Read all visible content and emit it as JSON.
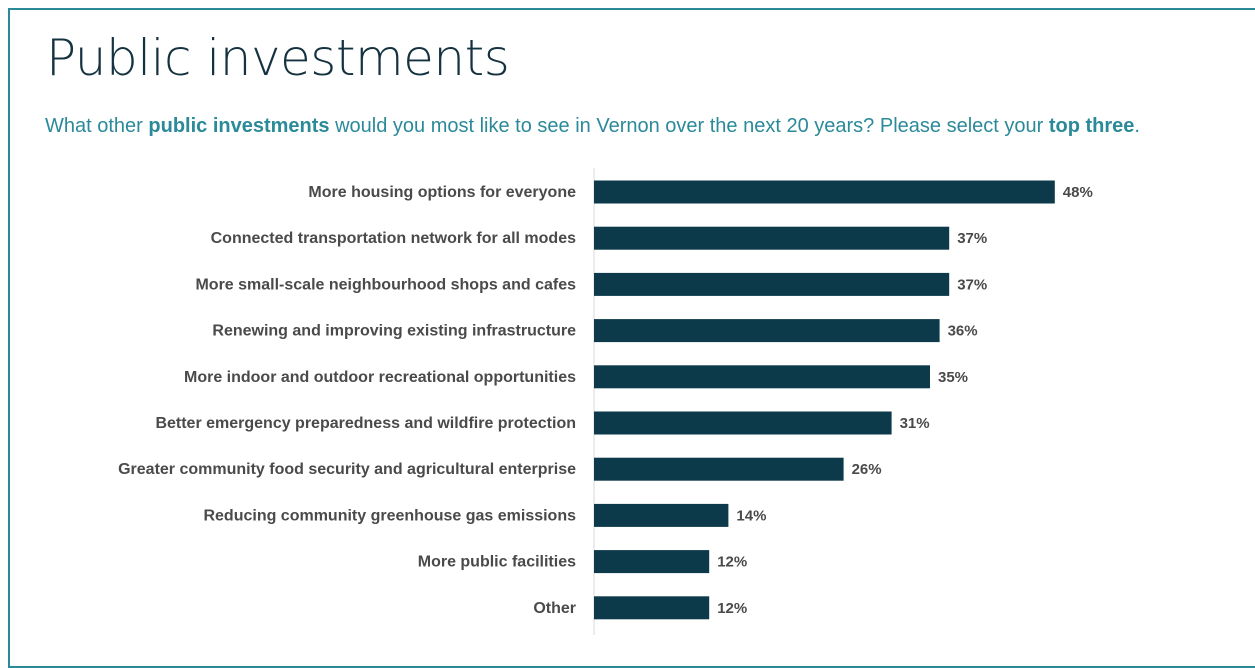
{
  "page": {
    "title": "Public investments",
    "subtitle": {
      "parts": [
        {
          "text": "What other ",
          "bold": false
        },
        {
          "text": "public investments",
          "bold": true
        },
        {
          "text": " would you most like to see in Vernon over the next 20 years?  Please select your ",
          "bold": false
        },
        {
          "text": "top three",
          "bold": true
        },
        {
          "text": ".",
          "bold": false
        }
      ]
    }
  },
  "colors": {
    "bar": "#0d3a4a",
    "accent": "#2b8a99",
    "label": "#4a4a4a"
  },
  "chart_data": {
    "type": "bar",
    "orientation": "horizontal",
    "categories": [
      "More housing options for everyone",
      "Connected transportation network for all modes",
      "More small-scale neighbourhood shops and cafes",
      "Renewing and improving existing infrastructure",
      "More indoor and outdoor recreational opportunities",
      "Better emergency preparedness and wildfire protection",
      "Greater community food security and agricultural enterprise",
      "Reducing community greenhouse gas emissions",
      "More public facilities",
      "Other"
    ],
    "values": [
      48,
      37,
      37,
      36,
      35,
      31,
      26,
      14,
      12,
      12
    ],
    "value_labels": [
      "48%",
      "37%",
      "37%",
      "36%",
      "35%",
      "31%",
      "26%",
      "14%",
      "12%",
      "12%"
    ],
    "unit": "%",
    "title": "",
    "xlabel": "",
    "ylabel": "",
    "grid": false,
    "legend": "none"
  }
}
